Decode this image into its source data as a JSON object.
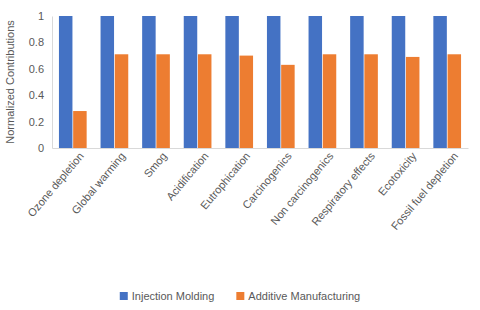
{
  "chart_data": {
    "type": "bar",
    "y_label": "Normalized Contributions",
    "categories": [
      "Ozone depletion",
      "Global warming",
      "Smog",
      "Acidification",
      "Eutrophication",
      "Carcinogenics",
      "Non carcinogenics",
      "Respiratory effects",
      "Ecotoxicity",
      "Fossil fuel depletion"
    ],
    "series": [
      {
        "name": "Injection Molding",
        "color": "#4472c4",
        "values": [
          1,
          1,
          1,
          1,
          1,
          1,
          1,
          1,
          1,
          1
        ]
      },
      {
        "name": "Additive Manufacturing",
        "color": "#ed7d31",
        "values": [
          0.28,
          0.71,
          0.71,
          0.71,
          0.7,
          0.63,
          0.71,
          0.71,
          0.69,
          0.71
        ]
      }
    ],
    "ylim": [
      0,
      1
    ],
    "yticks": [
      0,
      0.2,
      0.4,
      0.6,
      0.8,
      1
    ],
    "grid": false,
    "legend": "bottom"
  }
}
